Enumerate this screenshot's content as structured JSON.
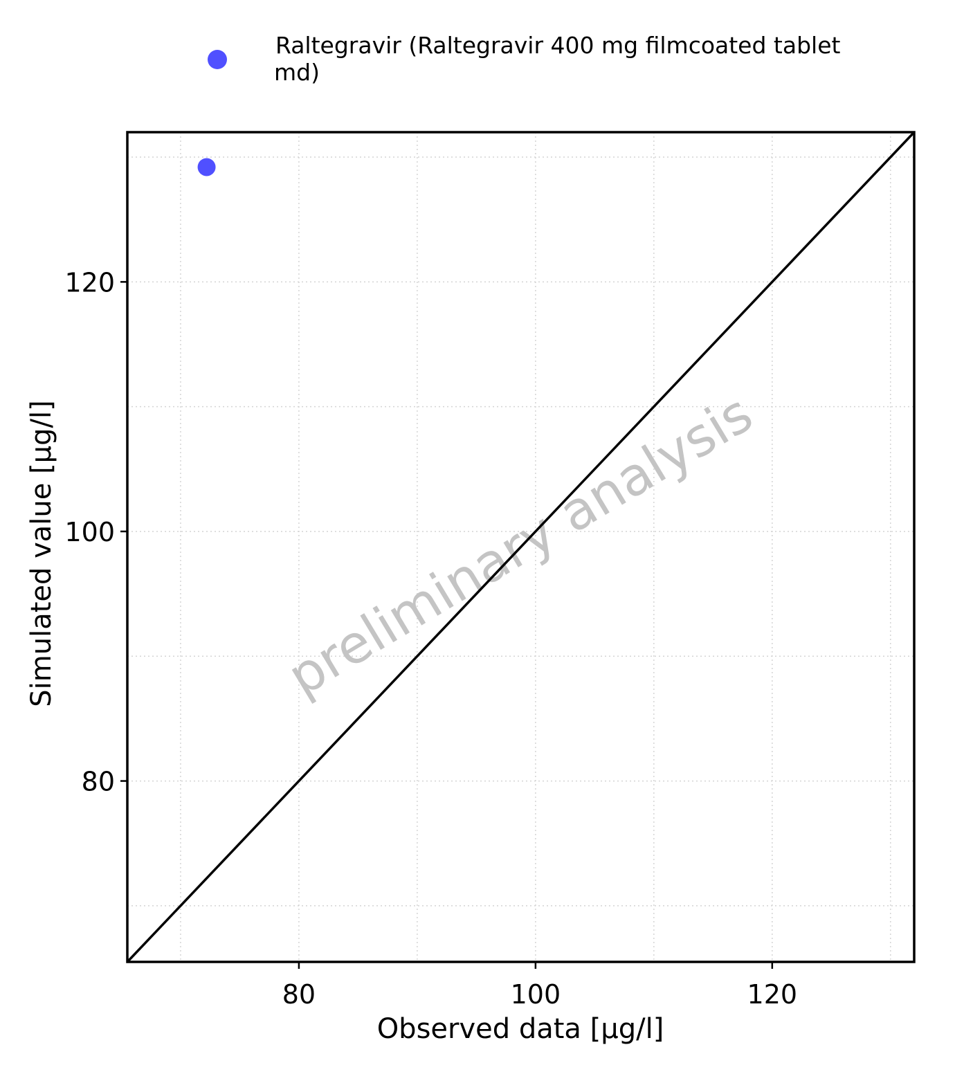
{
  "chart_data": {
    "type": "scatter",
    "xlabel": "Observed data [µg/l]",
    "ylabel": "Simulated value [µg/l]",
    "xlim": [
      65.5,
      132
    ],
    "ylim": [
      65.5,
      132
    ],
    "xticks": [
      80,
      100,
      120
    ],
    "yticks": [
      80,
      100,
      120
    ],
    "minor_grid": [
      70,
      90,
      110,
      130
    ],
    "grid": true,
    "identity_line": true,
    "legend_position": "top",
    "series": [
      {
        "name": "Raltegravir (Raltegravir 400 mg filmcoated tablet md)",
        "legend_lines": [
          "Raltegravir (Raltegravir 400 mg filmcoated tablet",
          "md)"
        ],
        "color": "#5050ff",
        "points": [
          {
            "x": 72.2,
            "y": 129.2
          }
        ]
      }
    ],
    "watermark": "preliminary analysis"
  }
}
